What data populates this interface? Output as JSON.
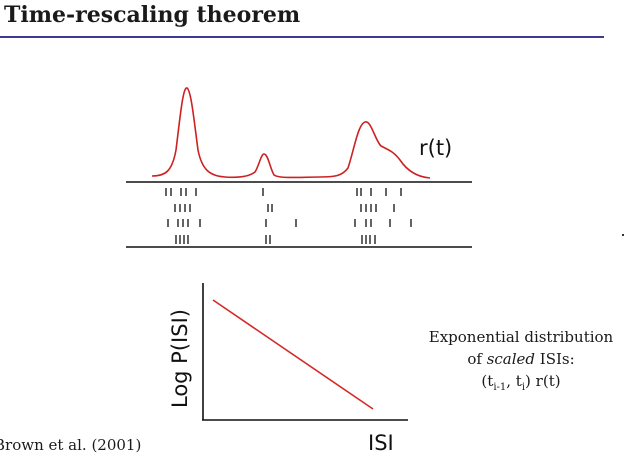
{
  "slide": {
    "title": "Time-rescaling theorem",
    "citation": "Brown et al. (2001)"
  },
  "rate_plot": {
    "label": "r(t)",
    "curve_color": "#cc2222"
  },
  "raster": {
    "trials": 4
  },
  "isi_plot": {
    "y_label": "Log P(ISI)",
    "x_label": "ISI",
    "line_color": "#d42a2a"
  },
  "caption": {
    "line1": "Exponential distribution",
    "line2_prefix": "of ",
    "line2_emph": "scaled",
    "line2_suffix": " ISIs:",
    "formula_open": "(t",
    "formula_sub1": "i-1",
    "formula_mid": ", t",
    "formula_sub2": "i",
    "formula_close": ") r(t)"
  },
  "colors": {
    "title_rule": "#3c3a96",
    "accent_red": "#cc2222"
  }
}
